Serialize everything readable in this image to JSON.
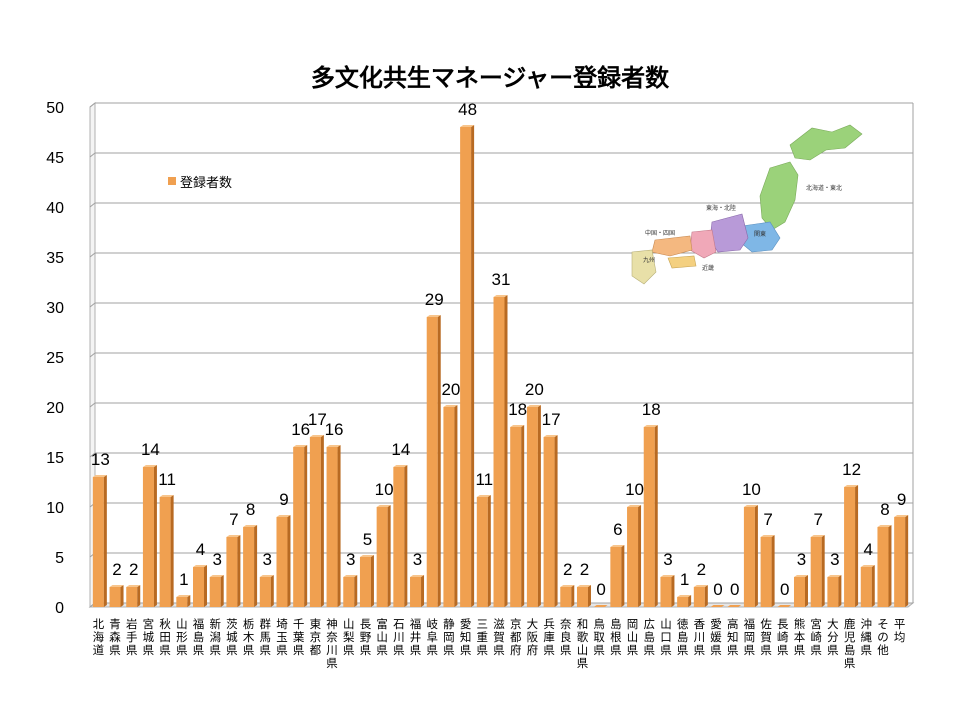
{
  "chart_data": {
    "type": "bar",
    "title": "多文化共生マネージャー登録者数",
    "xlabel": "",
    "ylabel": "",
    "ylim": [
      0,
      50
    ],
    "yticks": [
      0,
      5,
      10,
      15,
      20,
      25,
      30,
      35,
      40,
      45,
      50
    ],
    "grid": true,
    "legend_position": "upper-left",
    "bar_color": "#f0a050",
    "categories": [
      "北海道",
      "青森県",
      "岩手県",
      "宮城県",
      "秋田県",
      "山形県",
      "福島県",
      "新潟県",
      "茨城県",
      "栃木県",
      "群馬県",
      "埼玉県",
      "千葉県",
      "東京都",
      "神奈川県",
      "山梨県",
      "長野県",
      "富山県",
      "石川県",
      "福井県",
      "岐阜県",
      "静岡県",
      "愛知県",
      "三重県",
      "滋賀県",
      "京都府",
      "大阪府",
      "兵庫県",
      "奈良県",
      "和歌山県",
      "鳥取県",
      "島根県",
      "岡山県",
      "広島県",
      "山口県",
      "徳島県",
      "香川県",
      "愛媛県",
      "高知県",
      "福岡県",
      "佐賀県",
      "長崎県",
      "熊本県",
      "宮崎県",
      "大分県",
      "鹿児島県",
      "沖縄県",
      "その他",
      "平均"
    ],
    "series": [
      {
        "name": "登録者数",
        "values": [
          13,
          2,
          2,
          14,
          11,
          1,
          4,
          3,
          7,
          8,
          3,
          9,
          16,
          17,
          16,
          3,
          5,
          10,
          14,
          3,
          29,
          20,
          48,
          11,
          31,
          18,
          20,
          17,
          2,
          2,
          0,
          6,
          10,
          18,
          3,
          1,
          2,
          0,
          0,
          10,
          7,
          0,
          3,
          7,
          3,
          12,
          4,
          8,
          9
        ]
      }
    ]
  },
  "map": {
    "labels": [
      "北海道・東北",
      "東海・北陸",
      "関東",
      "中国・四国",
      "近畿",
      "九州"
    ]
  }
}
